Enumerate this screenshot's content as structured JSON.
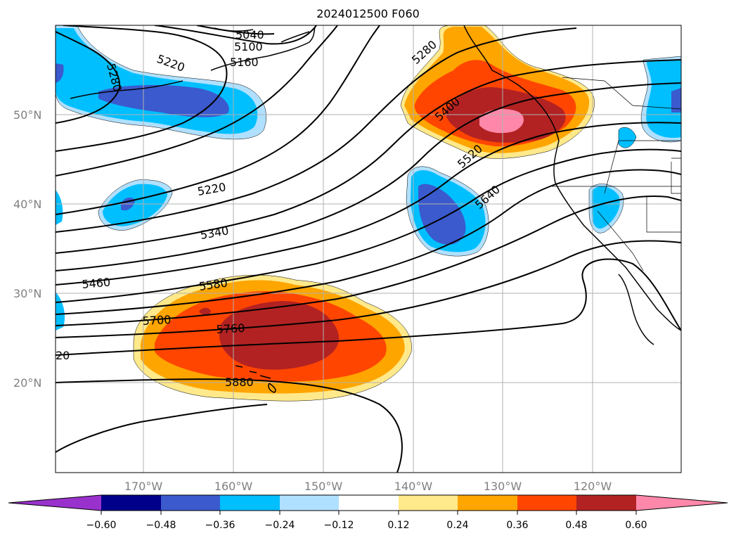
{
  "title": "2024012500 F060",
  "map": {
    "lat_labels": [
      "50°N",
      "40°N",
      "30°N",
      "20°N"
    ],
    "lon_labels": [
      "170°W",
      "160°W",
      "150°W",
      "140°W",
      "130°W",
      "120°W"
    ],
    "contour_labels": [
      "5040",
      "5100",
      "5160",
      "5220",
      "5280",
      "5280",
      "5400",
      "5520",
      "5640",
      "5220",
      "5340",
      "5460",
      "5580",
      "5700",
      "5760",
      "5880",
      "20"
    ]
  },
  "colorbar": {
    "ticks": [
      "−0.60",
      "−0.48",
      "−0.36",
      "−0.24",
      "−0.12",
      "0.12",
      "0.24",
      "0.36",
      "0.48",
      "0.60"
    ],
    "colors": [
      "#9932cc",
      "#00008b",
      "#3a5acd",
      "#00bfff",
      "#b0e0ff",
      "#ffffff",
      "#ffe98a",
      "#ffa500",
      "#ff4500",
      "#b22222",
      "#ff88aa"
    ]
  }
}
